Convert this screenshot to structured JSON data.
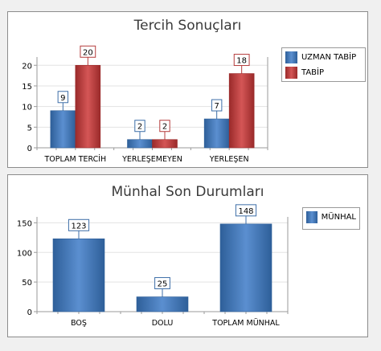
{
  "colors": {
    "blue_dark": "#2e5f99",
    "blue_light": "#5b8fd0",
    "red_dark": "#9a2a2a",
    "red_light": "#d45656",
    "grid": "#e3e3e3",
    "axis": "#9a9a9a"
  },
  "chart_data": [
    {
      "type": "bar",
      "title": "Tercih Sonuçları",
      "categories": [
        "TOPLAM TERCİH",
        "YERLEŞEMEYEN",
        "YERLEŞEN"
      ],
      "series": [
        {
          "name": "UZMAN TABİP",
          "values": [
            9,
            2,
            7
          ],
          "color": "#3d6ea8"
        },
        {
          "name": "TABİP",
          "values": [
            20,
            2,
            18
          ],
          "color": "#b53c3c"
        }
      ],
      "y_ticks": [
        "0",
        "5",
        "10",
        "15",
        "20"
      ],
      "ylim": [
        0,
        22
      ],
      "grid": true,
      "legend_position": "right",
      "data_labels": true
    },
    {
      "type": "bar",
      "title": "Münhal Son Durumları",
      "categories": [
        "BOŞ",
        "DOLU",
        "TOPLAM MÜNHAL"
      ],
      "series": [
        {
          "name": "MÜNHAL",
          "values": [
            123,
            25,
            148
          ],
          "color": "#3d6ea8"
        }
      ],
      "y_ticks": [
        "0",
        "50",
        "100",
        "150"
      ],
      "ylim": [
        0,
        160
      ],
      "grid": true,
      "legend_position": "right",
      "data_labels": true
    }
  ]
}
